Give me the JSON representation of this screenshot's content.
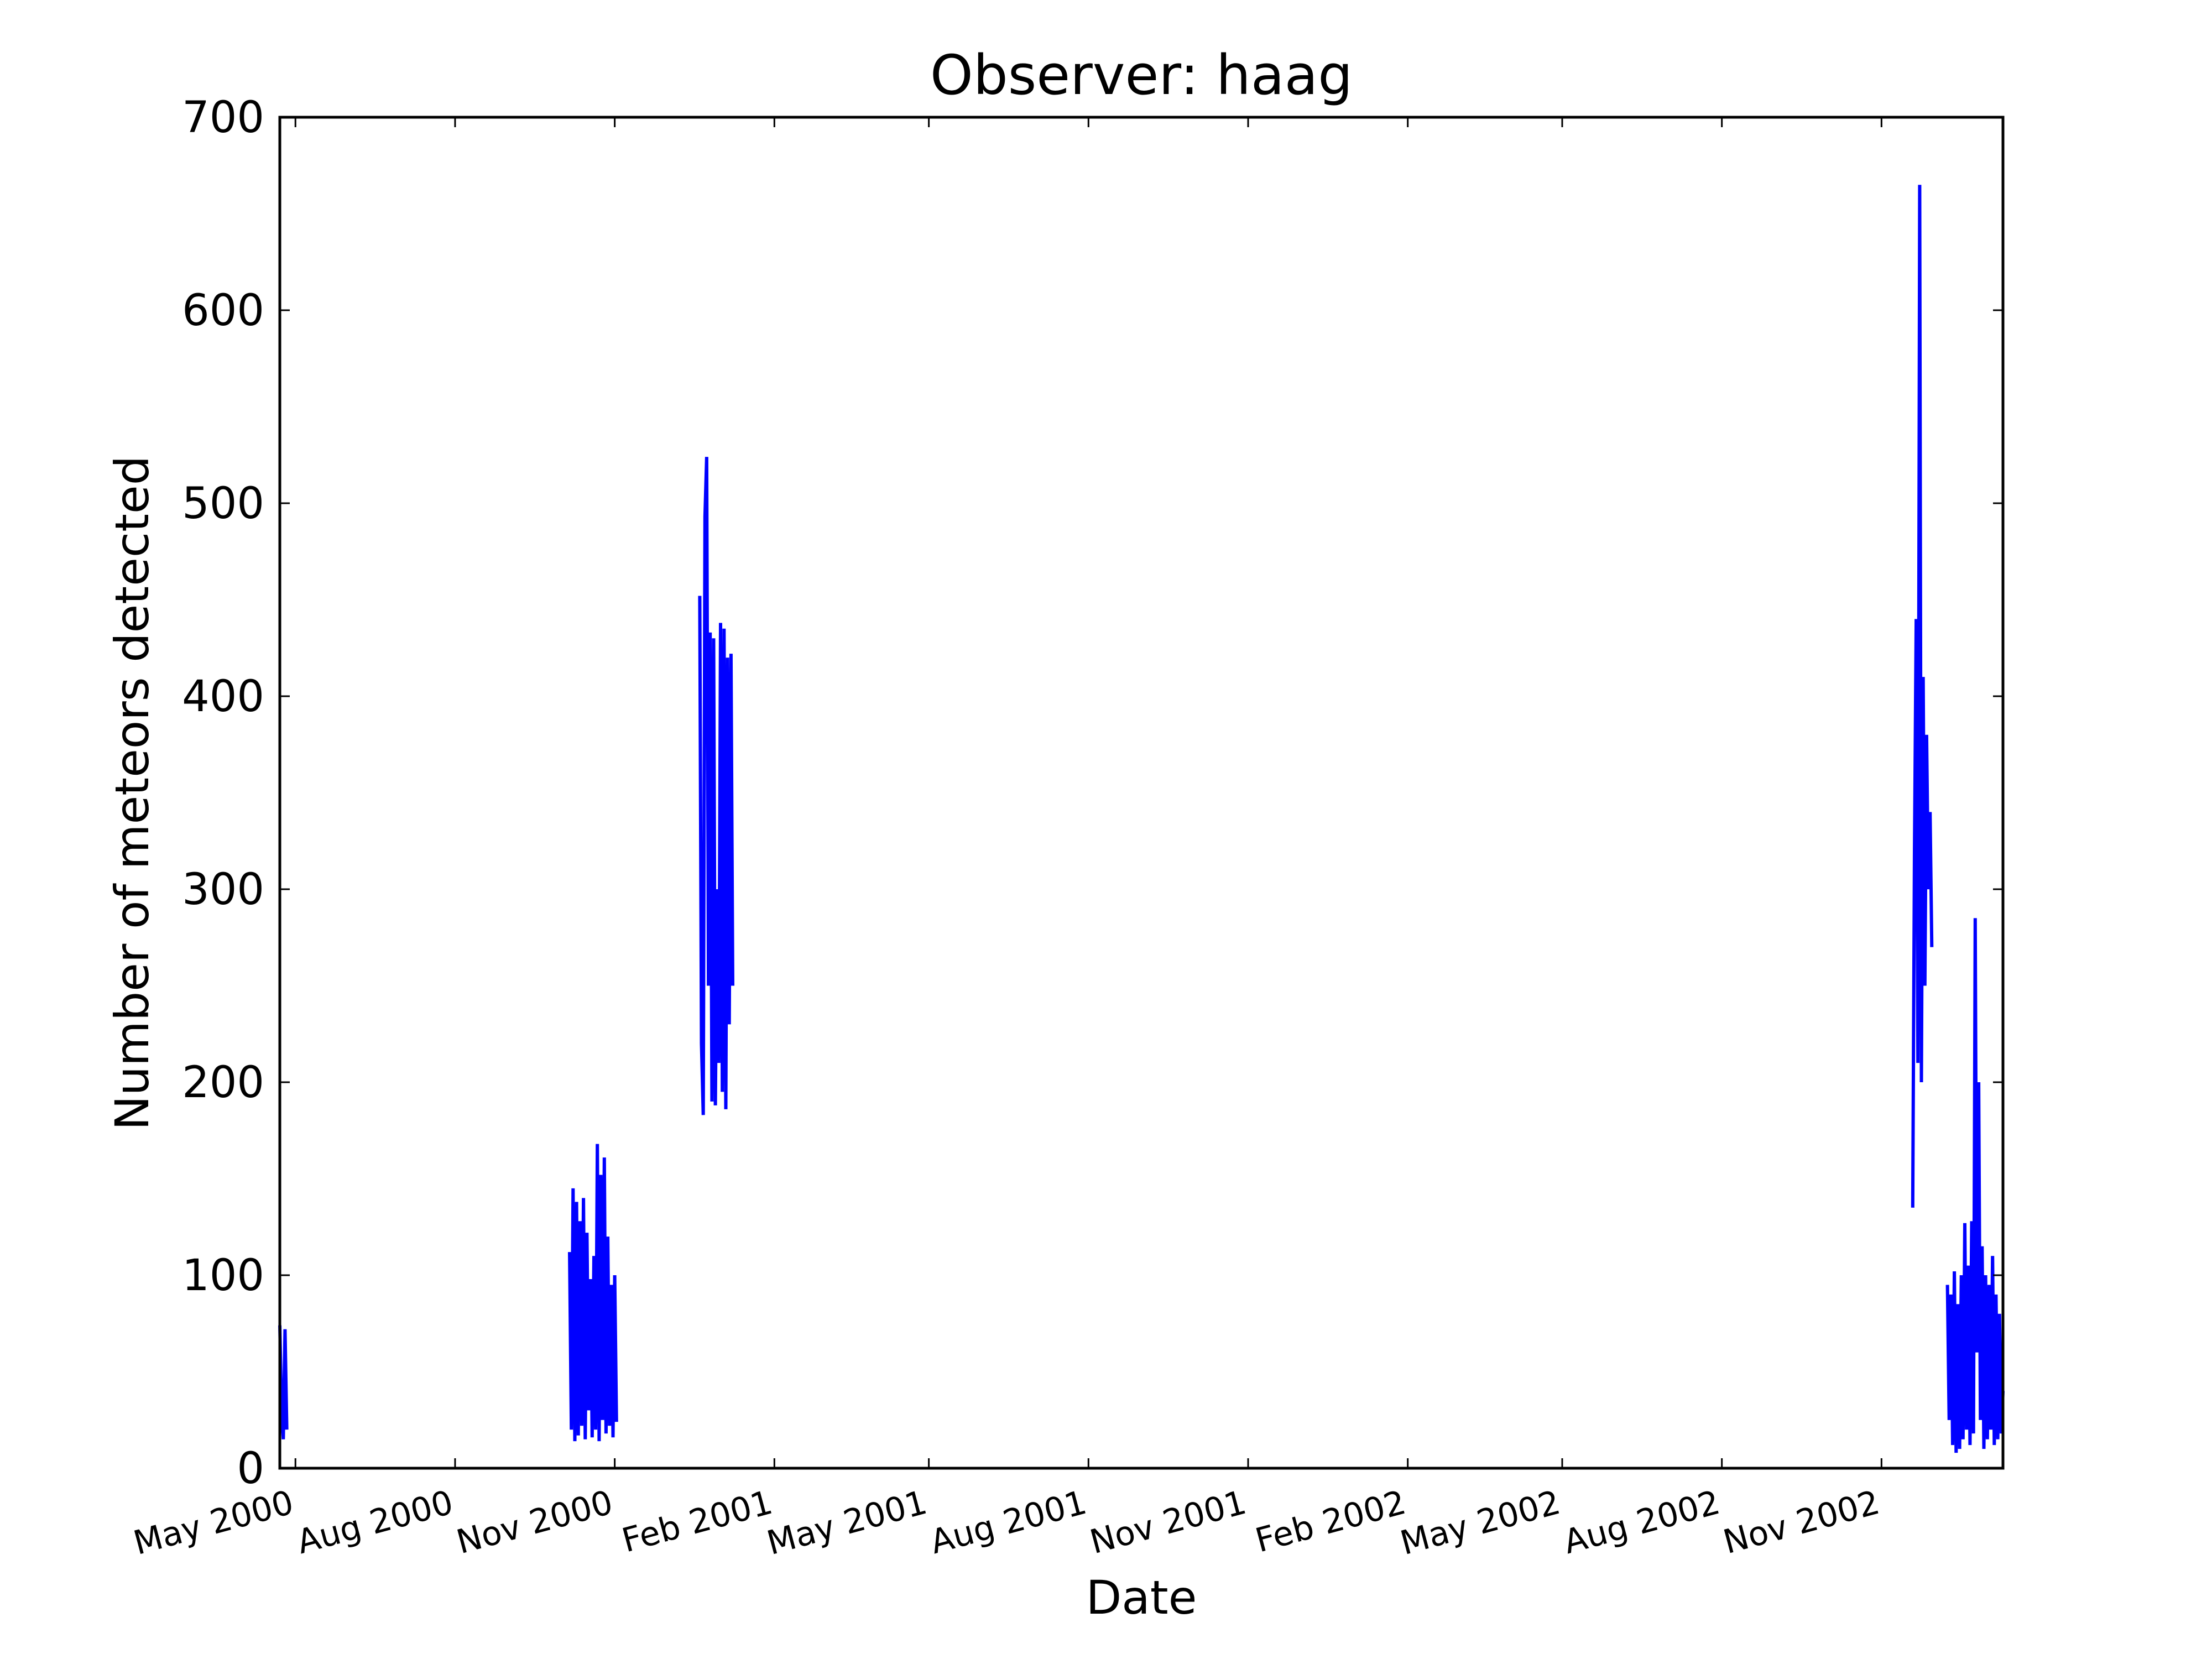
{
  "chart_data": {
    "type": "line",
    "title": "Observer: haag",
    "xlabel": "Date",
    "ylabel": "Number of meteors detected",
    "xlim": [
      "2000-04-22",
      "2003-01-10"
    ],
    "ylim": [
      0,
      700
    ],
    "yticks": [
      0,
      100,
      200,
      300,
      400,
      500,
      600,
      700
    ],
    "xticks": [
      {
        "date": "2000-05-01",
        "label": "May 2000"
      },
      {
        "date": "2000-08-01",
        "label": "Aug 2000"
      },
      {
        "date": "2000-11-01",
        "label": "Nov 2000"
      },
      {
        "date": "2001-02-01",
        "label": "Feb 2001"
      },
      {
        "date": "2001-05-01",
        "label": "May 2001"
      },
      {
        "date": "2001-08-01",
        "label": "Aug 2001"
      },
      {
        "date": "2001-11-01",
        "label": "Nov 2001"
      },
      {
        "date": "2002-02-01",
        "label": "Feb 2002"
      },
      {
        "date": "2002-05-01",
        "label": "May 2002"
      },
      {
        "date": "2002-08-01",
        "label": "Aug 2002"
      },
      {
        "date": "2002-11-01",
        "label": "Nov 2002"
      }
    ],
    "grid": false,
    "color": "#0000ff",
    "segments": [
      {
        "x": [
          "2000-04-22",
          "2000-04-23",
          "2000-04-24",
          "2000-04-25",
          "2000-04-26"
        ],
        "y": [
          74,
          30,
          15,
          72,
          20
        ]
      },
      {
        "x": [
          "2000-10-06",
          "2000-10-07",
          "2000-10-08",
          "2000-10-09",
          "2000-10-10",
          "2000-10-11",
          "2000-10-12",
          "2000-10-13",
          "2000-10-14",
          "2000-10-15",
          "2000-10-16",
          "2000-10-17",
          "2000-10-18",
          "2000-10-19",
          "2000-10-20",
          "2000-10-21",
          "2000-10-22",
          "2000-10-23",
          "2000-10-24",
          "2000-10-25",
          "2000-10-26",
          "2000-10-27",
          "2000-10-28",
          "2000-10-29",
          "2000-10-30",
          "2000-10-31",
          "2000-11-01",
          "2000-11-02"
        ],
        "y": [
          112,
          20,
          145,
          14,
          138,
          17,
          128,
          22,
          140,
          15,
          122,
          30,
          98,
          16,
          110,
          20,
          168,
          14,
          152,
          25,
          161,
          18,
          120,
          22,
          95,
          16,
          100,
          24
        ]
      },
      {
        "x": [
          "2000-12-20",
          "2000-12-21",
          "2000-12-22",
          "2000-12-23",
          "2000-12-24",
          "2000-12-25",
          "2000-12-26",
          "2000-12-27",
          "2000-12-28",
          "2000-12-29",
          "2000-12-30",
          "2000-12-31",
          "2001-01-01",
          "2001-01-02",
          "2001-01-03",
          "2001-01-04",
          "2001-01-05",
          "2001-01-06",
          "2001-01-07",
          "2001-01-08"
        ],
        "y": [
          452,
          220,
          183,
          493,
          524,
          250,
          433,
          190,
          430,
          188,
          300,
          210,
          438,
          195,
          435,
          186,
          420,
          230,
          422,
          250
        ]
      },
      {
        "x": [
          "2002-11-19",
          "2002-11-20",
          "2002-11-21",
          "2002-11-22",
          "2002-11-23",
          "2002-11-24",
          "2002-11-25",
          "2002-11-26",
          "2002-11-27",
          "2002-11-28",
          "2002-11-29",
          "2002-11-30"
        ],
        "y": [
          135,
          320,
          440,
          210,
          665,
          200,
          410,
          250,
          380,
          300,
          340,
          270
        ]
      },
      {
        "x": [
          "2002-12-09",
          "2002-12-10",
          "2002-12-11",
          "2002-12-12",
          "2002-12-13",
          "2002-12-14",
          "2002-12-15",
          "2002-12-16",
          "2002-12-17",
          "2002-12-18",
          "2002-12-19",
          "2002-12-20",
          "2002-12-21",
          "2002-12-22",
          "2002-12-23",
          "2002-12-24",
          "2002-12-25",
          "2002-12-26",
          "2002-12-27",
          "2002-12-28",
          "2002-12-29",
          "2002-12-30",
          "2002-12-31",
          "2003-01-01",
          "2003-01-02",
          "2003-01-03",
          "2003-01-04",
          "2003-01-05",
          "2003-01-06",
          "2003-01-07",
          "2003-01-08",
          "2003-01-09",
          "2003-01-10"
        ],
        "y": [
          95,
          25,
          90,
          12,
          102,
          8,
          85,
          10,
          100,
          15,
          127,
          20,
          105,
          12,
          128,
          18,
          285,
          60,
          200,
          25,
          115,
          10,
          100,
          15,
          95,
          20,
          110,
          12,
          90,
          15,
          80,
          18,
          40
        ]
      }
    ]
  }
}
